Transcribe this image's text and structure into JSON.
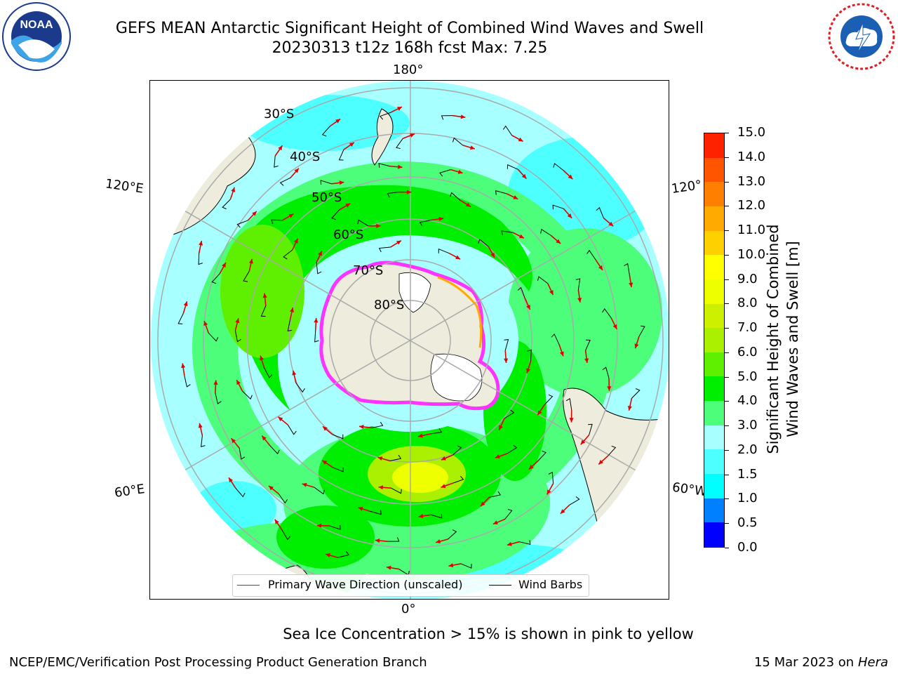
{
  "header": {
    "title_line1": "GEFS MEAN Antarctic Significant Height of Combined Wind Waves and Swell",
    "title_line2": "20230313 t12z 168h fcst   Max: 7.25"
  },
  "logos": {
    "noaa_text": "NOAA",
    "nws_text": "NATIONAL WEATHER SERVICE"
  },
  "map": {
    "lon_labels": [
      "180°",
      "120°E",
      "120°",
      "60°E",
      "60°W",
      "0°"
    ],
    "lat_labels": [
      "30°S",
      "40°S",
      "50°S",
      "60°S",
      "70°S",
      "80°S"
    ],
    "colors": {
      "land": "#eeecdc",
      "ocean_low": "#a8ffff",
      "ocean_mid": "#4dfe7a",
      "ocean_high": "#00ee00",
      "ice": "#ff33ff"
    }
  },
  "legend": {
    "wave_label": "Primary Wave Direction (unscaled)",
    "wind_label": "Wind Barbs"
  },
  "colorbar": {
    "label_line1": "Significant Height of Combined",
    "label_line2": "Wind Waves and Swell [m]",
    "ticks": [
      "0.0",
      "0.5",
      "1.0",
      "1.5",
      "2.0",
      "3.0",
      "4.0",
      "5.0",
      "6.0",
      "7.0",
      "8.0",
      "9.0",
      "10.0",
      "11.0",
      "12.0",
      "13.0",
      "14.0",
      "15.0"
    ],
    "colors": [
      "#0000ff",
      "#0080ff",
      "#00ffff",
      "#4dffff",
      "#a8ffff",
      "#4dfe7a",
      "#00ee00",
      "#5ef000",
      "#aaf000",
      "#ccf000",
      "#eeff00",
      "#ffff00",
      "#ffd000",
      "#ffaa00",
      "#ff8000",
      "#ff5500",
      "#ff2200",
      "#ff0000"
    ]
  },
  "footer": {
    "sea_ice_note": "Sea Ice Concentration > 15% is shown in pink to yellow",
    "branch": "NCEP/EMC/Verification Post Processing Product Generation Branch",
    "date": "15 Mar 2023 on",
    "host": "Hera"
  }
}
